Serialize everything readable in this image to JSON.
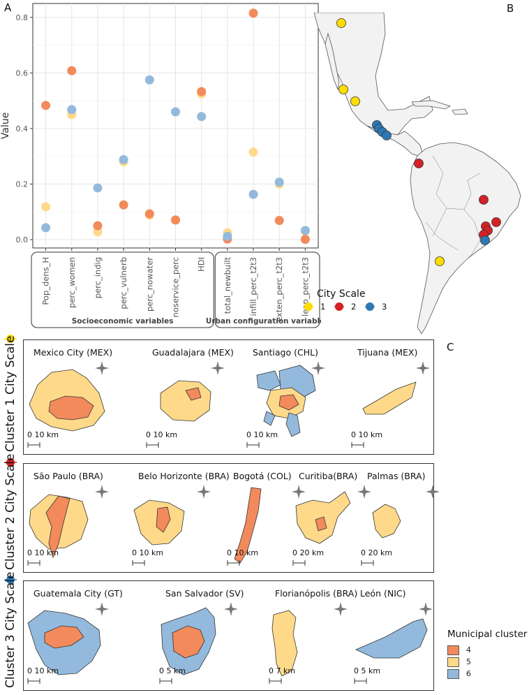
{
  "panels": {
    "a": "A",
    "b": "B",
    "c": "C"
  },
  "colors": {
    "cluster4": "#F28A5C",
    "cluster5": "#FFD98A",
    "cluster6": "#93BADC",
    "scale1": "#FFDD00",
    "scale2": "#D62027",
    "scale3": "#2E78B5"
  },
  "chart_data": {
    "type": "scatter",
    "ylabel": "Value",
    "ylim": [
      -0.03,
      0.85
    ],
    "yticks": [
      "0.0",
      "0.2",
      "0.4",
      "0.6",
      "0.8"
    ],
    "categories": [
      "Pop_dens_H",
      "perc_women",
      "perc_indig",
      "perc_vulnerb",
      "perc_nowater",
      "noservice_perc",
      "HDI",
      "total_newbuilt",
      "infill_perc_t2t3",
      "exten_perc_t2t3",
      "leap_perc_t2t3"
    ],
    "groups": [
      {
        "label": "Socioeconomic variables",
        "from": 0,
        "to": 6
      },
      {
        "label": "Urban configuration variables",
        "from": 7,
        "to": 10
      }
    ],
    "grid": true,
    "series": [
      {
        "cluster": "5",
        "color": "#FFD98A",
        "values": [
          0.118,
          0.45,
          0.028,
          0.28,
          0.088,
          0.07,
          0.525,
          0.025,
          0.315,
          0.2,
          0.03
        ]
      },
      {
        "cluster": "4",
        "color": "#F28A5C",
        "values": [
          0.483,
          0.608,
          0.05,
          0.125,
          0.093,
          0.071,
          0.533,
          0.002,
          0.815,
          0.069,
          0.001
        ]
      },
      {
        "cluster": "6",
        "color": "#93BADC",
        "values": [
          0.043,
          0.468,
          0.186,
          0.288,
          0.575,
          0.46,
          0.443,
          0.012,
          0.163,
          0.207,
          0.033
        ]
      }
    ]
  },
  "map": {
    "legend_title": "City Scale",
    "legend_items": [
      "1",
      "2",
      "3"
    ]
  },
  "clusters": [
    {
      "label": "Cluster 1 City Scale",
      "cities": [
        {
          "name": "Mexico City (MEX)",
          "scale": "0 10 km"
        },
        {
          "name": "Guadalajara (MEX)",
          "scale": "0 10 km"
        },
        {
          "name": "Santiago (CHL)",
          "scale": "0 10 km"
        },
        {
          "name": "Tijuana (MEX)",
          "scale": "0 10 km"
        }
      ]
    },
    {
      "label": "Cluster 2 City Scale",
      "cities": [
        {
          "name": "São Paulo (BRA)",
          "scale": "0 10 km"
        },
        {
          "name": "Belo Horizonte (BRA)",
          "scale": "0 10 km"
        },
        {
          "name": "Bogotá (COL)",
          "scale": "0 10 km"
        },
        {
          "name": "Curitiba(BRA)",
          "scale": "0 20 km"
        },
        {
          "name": "Palmas (BRA)",
          "scale": "0 20 km"
        }
      ]
    },
    {
      "label": "Cluster 3 City Scale",
      "cities": [
        {
          "name": "Guatemala City (GT)",
          "scale": "0    10 km"
        },
        {
          "name": "San Salvador (SV)",
          "scale": "0    5 km"
        },
        {
          "name": "Florianópolis (BRA)",
          "scale": "0 7 km"
        },
        {
          "name": "León (NIC)",
          "scale": "0 5 km"
        }
      ]
    }
  ],
  "legend": {
    "title": "Municipal cluster",
    "items": [
      "4",
      "5",
      "6"
    ]
  }
}
